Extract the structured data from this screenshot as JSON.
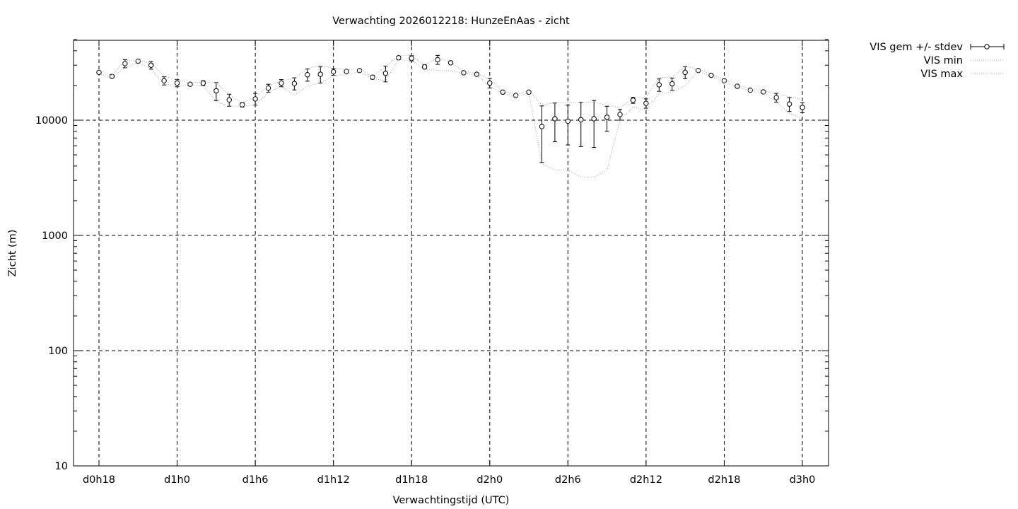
{
  "chart_data": {
    "type": "line",
    "title": "Verwachting 2026012218: HunzeEnAas - zicht",
    "xlabel": "Verwachtingstijd (UTC)",
    "ylabel": "Zicht (m)",
    "y_scale": "log",
    "ylim": [
      10,
      50000
    ],
    "grid": true,
    "legend_position": "outside-top-right",
    "x_unit": "hours",
    "x_range": [
      18,
      75
    ],
    "x_ticks": [
      {
        "label": "d0h18",
        "x": 18
      },
      {
        "label": "d1h0",
        "x": 24
      },
      {
        "label": "d1h6",
        "x": 30
      },
      {
        "label": "d1h12",
        "x": 36
      },
      {
        "label": "d1h18",
        "x": 42
      },
      {
        "label": "d2h0",
        "x": 48
      },
      {
        "label": "d2h6",
        "x": 54
      },
      {
        "label": "d2h12",
        "x": 60
      },
      {
        "label": "d2h18",
        "x": 66
      },
      {
        "label": "d3h0",
        "x": 72
      }
    ],
    "y_ticks": [
      {
        "label": "10",
        "y": 10
      },
      {
        "label": "100",
        "y": 100
      },
      {
        "label": "1000",
        "y": 1000
      },
      {
        "label": "10000",
        "y": 10000
      }
    ],
    "x": [
      18,
      19,
      20,
      21,
      22,
      23,
      24,
      25,
      26,
      27,
      28,
      29,
      30,
      31,
      32,
      33,
      34,
      35,
      36,
      37,
      38,
      39,
      40,
      41,
      42,
      43,
      44,
      45,
      46,
      47,
      48,
      49,
      50,
      51,
      52,
      53,
      54,
      55,
      56,
      57,
      58,
      59,
      60,
      61,
      62,
      63,
      64,
      65,
      66,
      67,
      68,
      69,
      70,
      71,
      72
    ],
    "series": [
      {
        "name": "VIS gem +/- stdev",
        "style": "points-errorbars",
        "color": "#000000",
        "values": [
          26000,
          24000,
          31000,
          32500,
          30000,
          22000,
          21000,
          20500,
          21000,
          18000,
          15000,
          13600,
          15300,
          19000,
          21000,
          20800,
          24800,
          25000,
          26300,
          26500,
          27000,
          23600,
          25500,
          34800,
          34500,
          29000,
          33500,
          31500,
          25800,
          25000,
          21000,
          17500,
          16400,
          17500,
          8800,
          10300,
          9800,
          10100,
          10300,
          10600,
          11200,
          14900,
          14000,
          20300,
          20700,
          26000,
          27000,
          24500,
          22000,
          19700,
          18200,
          17600,
          15700,
          13800,
          12900
        ],
        "stdev": [
          0,
          0,
          2500,
          0,
          2300,
          1800,
          1500,
          0,
          1000,
          3200,
          1800,
          600,
          1800,
          1500,
          1500,
          2500,
          3000,
          4000,
          1800,
          0,
          0,
          900,
          4000,
          1200,
          1800,
          1200,
          3000,
          0,
          0,
          0,
          2000,
          0,
          0,
          0,
          4500,
          3800,
          3700,
          4200,
          4500,
          2600,
          1200,
          900,
          1300,
          2500,
          2500,
          3100,
          0,
          0,
          0,
          0,
          0,
          0,
          1400,
          1900,
          1300
        ]
      },
      {
        "name": "VIS min",
        "style": "dotted-line",
        "color": "#a0a0a0",
        "values": [
          25200,
          23500,
          28500,
          32000,
          27800,
          20500,
          20000,
          20000,
          20000,
          14500,
          13200,
          13300,
          13500,
          17500,
          19500,
          16500,
          19800,
          21000,
          24500,
          24800,
          26500,
          23000,
          22000,
          33500,
          33000,
          27500,
          27000,
          26800,
          25400,
          24800,
          19500,
          17200,
          16000,
          17200,
          4200,
          3700,
          3700,
          3200,
          3200,
          3700,
          10000,
          13000,
          12200,
          17000,
          17500,
          20000,
          26600,
          24100,
          21600,
          19500,
          17900,
          17300,
          14300,
          11500,
          10300
        ]
      },
      {
        "name": "VIS max",
        "style": "dotted-line",
        "color": "#a0a0a0",
        "values": [
          27000,
          24500,
          33000,
          33200,
          31200,
          24000,
          22500,
          21000,
          21500,
          21200,
          16500,
          14200,
          15900,
          19800,
          22000,
          23000,
          28000,
          30000,
          28000,
          27500,
          27800,
          24100,
          29000,
          36500,
          36500,
          30500,
          34500,
          32000,
          26500,
          25500,
          22500,
          18000,
          16800,
          18000,
          13500,
          14200,
          14300,
          14300,
          14300,
          13500,
          12800,
          15500,
          15800,
          23500,
          23500,
          29500,
          27800,
          25000,
          22600,
          20300,
          18700,
          18100,
          16800,
          16000,
          15100
        ]
      }
    ]
  }
}
